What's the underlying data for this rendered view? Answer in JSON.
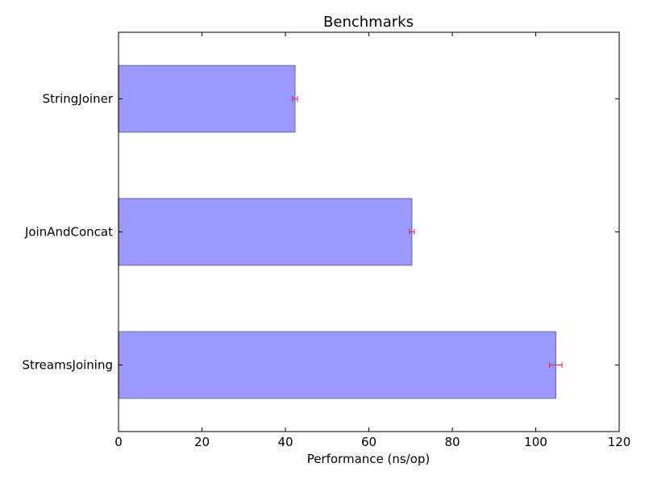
{
  "chart_data": {
    "type": "bar",
    "orientation": "horizontal",
    "title": "Benchmarks",
    "xlabel": "Performance (ns/op)",
    "ylabel": "",
    "categories": [
      "StringJoiner",
      "JoinAndConcat",
      "StreamsJoining"
    ],
    "values": [
      42.3,
      70.3,
      104.8
    ],
    "errors": [
      0.6,
      0.6,
      1.5
    ],
    "xlim": [
      0,
      120
    ],
    "xticks": [
      0,
      20,
      40,
      60,
      80,
      100,
      120
    ],
    "grid": false,
    "legend": "none",
    "colors": {
      "bar_fill": "#9999ff",
      "bar_stroke": "#6f6fa6",
      "error_bar": "#e8262c"
    }
  }
}
